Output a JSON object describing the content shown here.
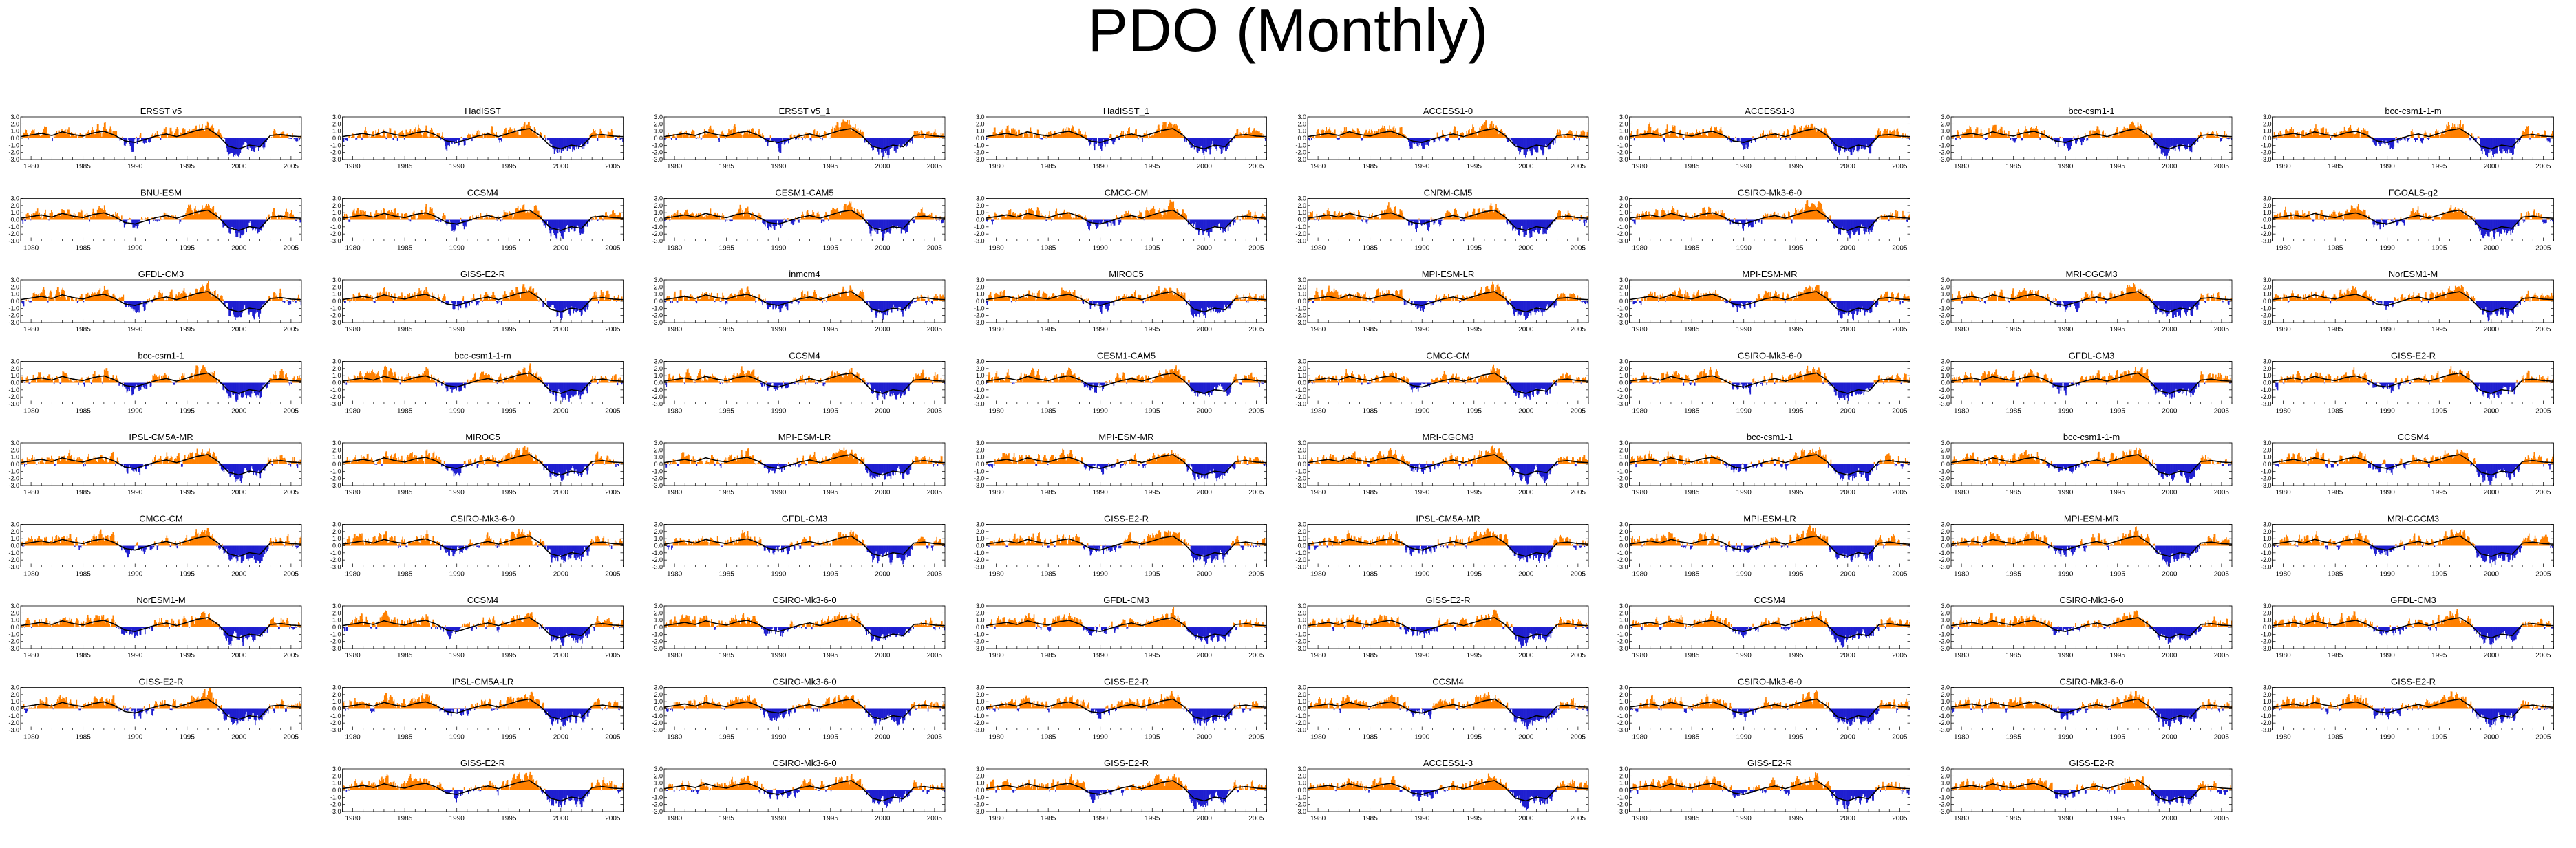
{
  "title": "PDO (Monthly)",
  "chart_data": {
    "type": "bar",
    "description_series": "monthly PDO index anomalies: positive values orange, negative values blue, black smoothed curve",
    "colors": {
      "positive": "#ff8000",
      "negative": "#1f1fd0",
      "smooth": "#000000"
    },
    "xlim": [
      1979,
      2006
    ],
    "ylim": [
      -3.0,
      3.0
    ],
    "x_ticks": [
      1980,
      1985,
      1990,
      1995,
      2000,
      2005
    ],
    "y_tick_labels": [
      "3.0",
      "2.0",
      "1.0",
      "0.0",
      "-1.0",
      "-2.0",
      "-3.0"
    ],
    "y_ticks": [
      3.0,
      2.0,
      1.0,
      0.0,
      -1.0,
      -2.0,
      -3.0
    ],
    "keyframes": {
      "years": [
        1979,
        1980,
        1981,
        1982,
        1983,
        1984,
        1985,
        1986,
        1987,
        1988,
        1989,
        1990,
        1991,
        1992,
        1993,
        1994,
        1995,
        1996,
        1997,
        1998,
        1999,
        2000,
        2001,
        2002,
        2003,
        2004,
        2005,
        2006
      ],
      "values": [
        0.3,
        0.6,
        0.9,
        0.5,
        1.2,
        0.7,
        0.4,
        1.0,
        1.3,
        0.6,
        -0.5,
        -0.8,
        -0.2,
        0.4,
        0.8,
        0.3,
        0.9,
        1.5,
        1.8,
        0.5,
        -1.5,
        -2.0,
        -1.3,
        -1.6,
        0.5,
        0.7,
        0.4,
        0.3
      ]
    },
    "panels": [
      [
        {
          "title": "ERSST v5"
        },
        {
          "title": "HadISST"
        },
        {
          "title": "ERSST v5_1"
        },
        {
          "title": "HadISST_1"
        },
        {
          "title": "ACCESS1-0"
        },
        {
          "title": "ACCESS1-3"
        },
        {
          "title": "bcc-csm1-1"
        },
        {
          "title": "bcc-csm1-1-m"
        }
      ],
      [
        {
          "title": "BNU-ESM"
        },
        {
          "title": "CCSM4"
        },
        {
          "title": "CESM1-CAM5"
        },
        {
          "title": "CMCC-CM"
        },
        {
          "title": "CNRM-CM5"
        },
        {
          "title": "CSIRO-Mk3-6-0"
        },
        null,
        {
          "title": "FGOALS-g2"
        }
      ],
      [
        {
          "title": "GFDL-CM3"
        },
        {
          "title": "GISS-E2-R"
        },
        {
          "title": "inmcm4"
        },
        {
          "title": "MIROC5"
        },
        {
          "title": "MPI-ESM-LR"
        },
        {
          "title": "MPI-ESM-MR"
        },
        {
          "title": "MRI-CGCM3"
        },
        {
          "title": "NorESM1-M"
        }
      ],
      [
        {
          "title": "bcc-csm1-1"
        },
        {
          "title": "bcc-csm1-1-m"
        },
        {
          "title": "CCSM4"
        },
        {
          "title": "CESM1-CAM5"
        },
        {
          "title": "CMCC-CM"
        },
        {
          "title": "CSIRO-Mk3-6-0"
        },
        {
          "title": "GFDL-CM3"
        },
        {
          "title": "GISS-E2-R"
        }
      ],
      [
        {
          "title": "IPSL-CM5A-MR"
        },
        {
          "title": "MIROC5"
        },
        {
          "title": "MPI-ESM-LR"
        },
        {
          "title": "MPI-ESM-MR"
        },
        {
          "title": "MRI-CGCM3"
        },
        {
          "title": "bcc-csm1-1"
        },
        {
          "title": "bcc-csm1-1-m"
        },
        {
          "title": "CCSM4"
        }
      ],
      [
        {
          "title": "CMCC-CM"
        },
        {
          "title": "CSIRO-Mk3-6-0"
        },
        {
          "title": "GFDL-CM3"
        },
        {
          "title": "GISS-E2-R"
        },
        {
          "title": "IPSL-CM5A-MR"
        },
        {
          "title": "MPI-ESM-LR"
        },
        {
          "title": "MPI-ESM-MR"
        },
        {
          "title": "MRI-CGCM3"
        }
      ],
      [
        {
          "title": "NorESM1-M"
        },
        {
          "title": "CCSM4"
        },
        {
          "title": "CSIRO-Mk3-6-0"
        },
        {
          "title": "GFDL-CM3"
        },
        {
          "title": "GISS-E2-R"
        },
        {
          "title": "CCSM4"
        },
        {
          "title": "CSIRO-Mk3-6-0"
        },
        {
          "title": "GFDL-CM3"
        }
      ],
      [
        {
          "title": "GISS-E2-R"
        },
        {
          "title": "IPSL-CM5A-LR"
        },
        {
          "title": "CSIRO-Mk3-6-0"
        },
        {
          "title": "GISS-E2-R"
        },
        {
          "title": "CCSM4"
        },
        {
          "title": "CSIRO-Mk3-6-0"
        },
        {
          "title": "CSIRO-Mk3-6-0"
        },
        {
          "title": "GISS-E2-R"
        }
      ],
      [
        null,
        {
          "title": "GISS-E2-R"
        },
        {
          "title": "CSIRO-Mk3-6-0"
        },
        {
          "title": "GISS-E2-R"
        },
        {
          "title": "ACCESS1-3"
        },
        {
          "title": "GISS-E2-R"
        },
        {
          "title": "GISS-E2-R"
        },
        null
      ]
    ]
  }
}
